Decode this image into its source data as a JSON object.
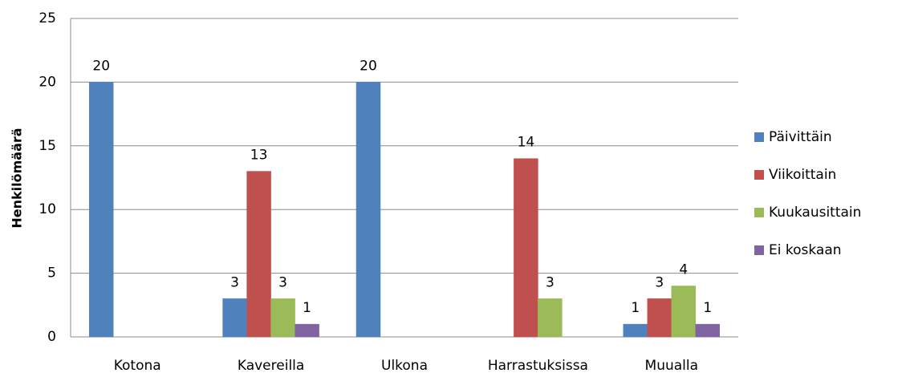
{
  "chart_data": {
    "type": "bar",
    "ylabel": "Henkilömäärä",
    "categories": [
      "Kotona",
      "Kavereilla",
      "Ulkona",
      "Harrastuksissa",
      "Muualla"
    ],
    "series": [
      {
        "name": "Päivittäin",
        "color": "#4f81bd",
        "values": [
          20,
          3,
          20,
          null,
          1
        ]
      },
      {
        "name": "Viikoittain",
        "color": "#c0504d",
        "values": [
          null,
          13,
          null,
          14,
          3
        ]
      },
      {
        "name": "Kuukausittain",
        "color": "#9bbb59",
        "values": [
          null,
          3,
          null,
          3,
          4
        ]
      },
      {
        "name": "Ei koskaan",
        "color": "#8064a2",
        "values": [
          null,
          1,
          null,
          null,
          1
        ]
      }
    ],
    "ylim": [
      0,
      25
    ],
    "yticks": [
      0,
      5,
      10,
      15,
      20,
      25
    ],
    "grid": true,
    "legend": "right"
  }
}
